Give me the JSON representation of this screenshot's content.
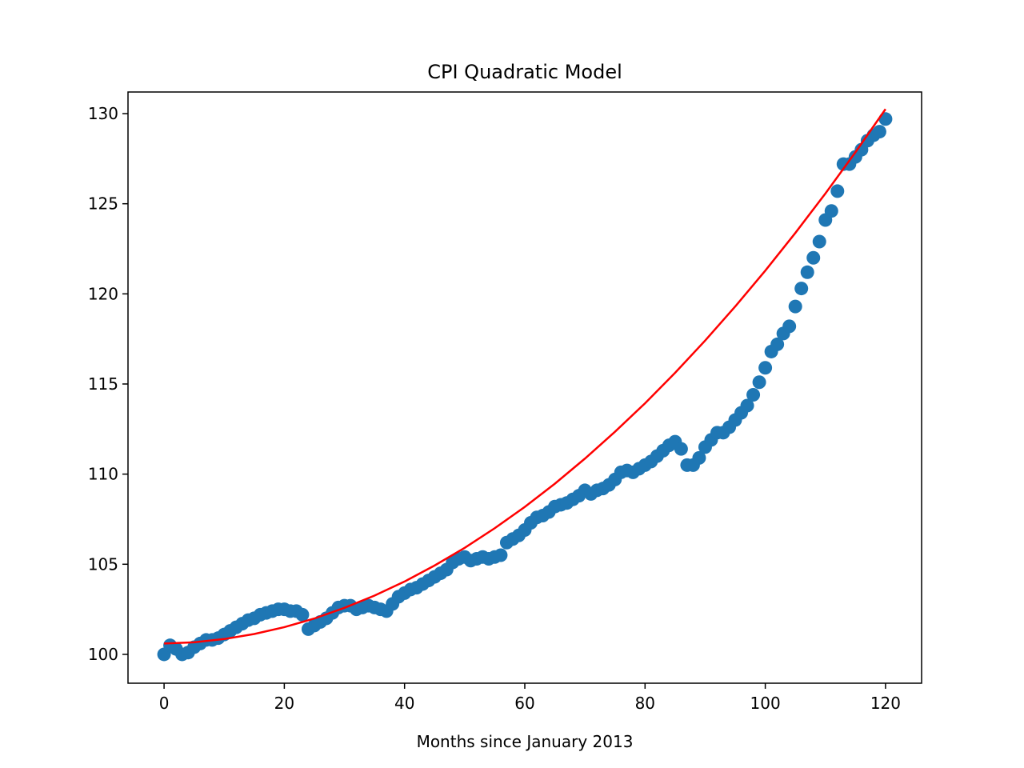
{
  "chart_data": {
    "type": "scatter",
    "title": "CPI Quadratic Model",
    "xlabel": "Months since January 2013",
    "ylabel": "",
    "xlim": [
      -6,
      126
    ],
    "ylim": [
      98.4,
      131.2
    ],
    "xticks": [
      0,
      20,
      40,
      60,
      80,
      100,
      120
    ],
    "yticks": [
      100,
      105,
      110,
      115,
      120,
      125,
      130
    ],
    "grid": false,
    "legend": "none",
    "series": [
      {
        "kind": "scatter",
        "color": "#1f77b4",
        "x": [
          0,
          1,
          2,
          3,
          4,
          5,
          6,
          7,
          8,
          9,
          10,
          11,
          12,
          13,
          14,
          15,
          16,
          17,
          18,
          19,
          20,
          21,
          22,
          23,
          24,
          25,
          26,
          27,
          28,
          29,
          30,
          31,
          32,
          33,
          34,
          35,
          36,
          37,
          38,
          39,
          40,
          41,
          42,
          43,
          44,
          45,
          46,
          47,
          48,
          49,
          50,
          51,
          52,
          53,
          54,
          55,
          56,
          57,
          58,
          59,
          60,
          61,
          62,
          63,
          64,
          65,
          66,
          67,
          68,
          69,
          70,
          71,
          72,
          73,
          74,
          75,
          76,
          77,
          78,
          79,
          80,
          81,
          82,
          83,
          84,
          85,
          86,
          87,
          88,
          89,
          90,
          91,
          92,
          93,
          94,
          95,
          96,
          97,
          98,
          99,
          100,
          101,
          102,
          103,
          104,
          105,
          106,
          107,
          108,
          109,
          110,
          111,
          112,
          113,
          114,
          115,
          116,
          117,
          118,
          119,
          120
        ],
        "y": [
          100.0,
          100.5,
          100.3,
          100.0,
          100.1,
          100.4,
          100.6,
          100.8,
          100.8,
          100.9,
          101.1,
          101.3,
          101.5,
          101.7,
          101.9,
          102.0,
          102.2,
          102.3,
          102.4,
          102.5,
          102.5,
          102.4,
          102.4,
          102.2,
          101.4,
          101.6,
          101.8,
          102.0,
          102.3,
          102.6,
          102.7,
          102.7,
          102.5,
          102.6,
          102.7,
          102.6,
          102.5,
          102.4,
          102.8,
          103.2,
          103.4,
          103.6,
          103.7,
          103.9,
          104.1,
          104.3,
          104.5,
          104.7,
          105.1,
          105.3,
          105.4,
          105.2,
          105.3,
          105.4,
          105.3,
          105.4,
          105.5,
          106.2,
          106.4,
          106.6,
          106.9,
          107.3,
          107.6,
          107.7,
          107.9,
          108.2,
          108.3,
          108.4,
          108.6,
          108.8,
          109.1,
          108.9,
          109.1,
          109.2,
          109.4,
          109.7,
          110.1,
          110.2,
          110.1,
          110.3,
          110.5,
          110.7,
          111.0,
          111.3,
          111.6,
          111.8,
          111.4,
          110.5,
          110.5,
          110.9,
          111.5,
          111.9,
          112.3,
          112.3,
          112.6,
          113.0,
          113.4,
          113.8,
          114.4,
          115.1,
          115.9,
          116.8,
          117.2,
          117.8,
          118.2,
          119.3,
          120.3,
          121.2,
          122.0,
          122.9,
          124.1,
          124.6,
          125.7,
          127.2,
          127.2,
          127.6,
          128.0,
          128.5,
          128.8,
          129.0,
          129.7
        ]
      },
      {
        "kind": "line",
        "color": "#ff0000",
        "x": [
          0,
          5,
          10,
          15,
          20,
          25,
          30,
          35,
          40,
          45,
          50,
          55,
          60,
          65,
          70,
          75,
          80,
          85,
          90,
          95,
          100,
          105,
          110,
          115,
          120
        ],
        "y": [
          100.6,
          100.67,
          100.85,
          101.13,
          101.51,
          101.99,
          102.58,
          103.26,
          104.04,
          104.93,
          105.91,
          107.0,
          108.18,
          109.47,
          110.86,
          112.35,
          113.93,
          115.62,
          117.41,
          119.3,
          121.29,
          123.38,
          125.57,
          127.86,
          130.25
        ]
      }
    ]
  }
}
